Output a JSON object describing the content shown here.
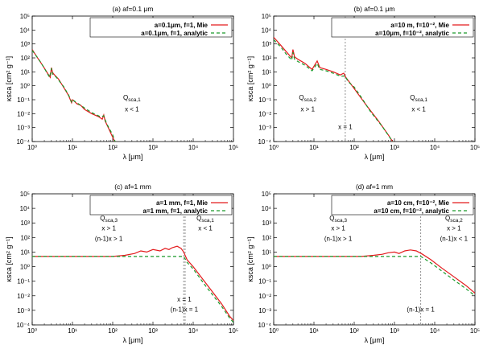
{
  "chart_data": [
    {
      "type": "line",
      "title": "(a) af=0.1 μm",
      "xlabel": "λ [μm]",
      "ylabel": "κsca [cm² g⁻¹]",
      "xscale": "log",
      "yscale": "log",
      "xlim": [
        1,
        100000
      ],
      "ylim": [
        0.0001,
        100000
      ],
      "x_ticks": [
        "10⁰",
        "10¹",
        "10²",
        "10³",
        "10⁴",
        "10⁵"
      ],
      "y_ticks": [
        "10⁻⁴",
        "10⁻³",
        "10⁻²",
        "10⁻¹",
        "10⁰",
        "10¹",
        "10²",
        "10³",
        "10⁴",
        "10⁵"
      ],
      "legend": [
        "a=0.1μm, f=1, Mie",
        "a=0.1μm, f=1, analytic"
      ],
      "series": [
        {
          "name": "a=0.1μm, f=1, Mie",
          "color": "#e31a1c",
          "dash": "",
          "points": [
            [
              1,
              400
            ],
            [
              1.3,
              120
            ],
            [
              1.8,
              30
            ],
            [
              2.4,
              8
            ],
            [
              2.8,
              4
            ],
            [
              3.0,
              20
            ],
            [
              3.2,
              9
            ],
            [
              3.6,
              6
            ],
            [
              4.5,
              3
            ],
            [
              6,
              0.8
            ],
            [
              8,
              0.2
            ],
            [
              9.5,
              0.06
            ],
            [
              10,
              0.1
            ],
            [
              11,
              0.08
            ],
            [
              13,
              0.05
            ],
            [
              16,
              0.04
            ],
            [
              20,
              0.02
            ],
            [
              30,
              0.01
            ],
            [
              45,
              0.006
            ],
            [
              55,
              0.004
            ],
            [
              60,
              0.008
            ],
            [
              65,
              0.003
            ],
            [
              80,
              0.0008
            ],
            [
              100,
              0.0002
            ],
            [
              112,
              0.0001
            ]
          ]
        },
        {
          "name": "a=0.1μm, f=1, analytic",
          "color": "#1a9a2a",
          "dash": "4,3",
          "points": [
            [
              1,
              350
            ],
            [
              1.5,
              70
            ],
            [
              2,
              18
            ],
            [
              2.7,
              4
            ],
            [
              3,
              18
            ],
            [
              3.2,
              7
            ],
            [
              4,
              4
            ],
            [
              6,
              0.9
            ],
            [
              8,
              0.22
            ],
            [
              9.5,
              0.07
            ],
            [
              10,
              0.1
            ],
            [
              12,
              0.07
            ],
            [
              16,
              0.04
            ],
            [
              20,
              0.025
            ],
            [
              30,
              0.012
            ],
            [
              50,
              0.006
            ],
            [
              60,
              0.007
            ],
            [
              70,
              0.002
            ],
            [
              100,
              0.0003
            ],
            [
              115,
              0.0001
            ]
          ]
        }
      ],
      "vlines": [],
      "annotations": [
        [
          "Q_sca,1",
          300,
          0.1
        ],
        [
          "x < 1",
          300,
          0.015
        ]
      ]
    },
    {
      "type": "line",
      "title": "(b) af=0.1 μm",
      "xlabel": "λ [μm]",
      "ylabel": "κsca [cm² g⁻¹]",
      "xscale": "log",
      "yscale": "log",
      "xlim": [
        1,
        100000
      ],
      "ylim": [
        0.0001,
        100000
      ],
      "x_ticks": [
        "10⁰",
        "10¹",
        "10²",
        "10³",
        "10⁴",
        "10⁵"
      ],
      "y_ticks": [
        "10⁻⁴",
        "10⁻³",
        "10⁻²",
        "10⁻¹",
        "10⁰",
        "10¹",
        "10²",
        "10³",
        "10⁴",
        "10⁵"
      ],
      "legend": [
        "a=10 m, f=10⁻², Mie",
        "a=10μm, f=10⁻², analytic"
      ],
      "series": [
        {
          "name": "a=10 m, f=10⁻², Mie",
          "color": "#e31a1c",
          "dash": "",
          "points": [
            [
              1,
              3000
            ],
            [
              1.5,
              800
            ],
            [
              2,
              300
            ],
            [
              2.8,
              100
            ],
            [
              3,
              400
            ],
            [
              3.3,
              120
            ],
            [
              4,
              80
            ],
            [
              6,
              40
            ],
            [
              9,
              15
            ],
            [
              10,
              25
            ],
            [
              12,
              60
            ],
            [
              14,
              20
            ],
            [
              20,
              15
            ],
            [
              30,
              10
            ],
            [
              45,
              6
            ],
            [
              55,
              8
            ],
            [
              62,
              4
            ],
            [
              80,
              1.5
            ],
            [
              120,
              0.3
            ],
            [
              200,
              0.04
            ],
            [
              400,
              0.003
            ],
            [
              700,
              0.0003
            ],
            [
              900,
              0.0001
            ]
          ]
        },
        {
          "name": "a=10μm, f=10⁻², analytic",
          "color": "#1a9a2a",
          "dash": "4,3",
          "points": [
            [
              1,
              2000
            ],
            [
              1.5,
              600
            ],
            [
              2,
              200
            ],
            [
              2.8,
              70
            ],
            [
              3,
              250
            ],
            [
              3.3,
              80
            ],
            [
              4,
              55
            ],
            [
              6,
              30
            ],
            [
              9,
              12
            ],
            [
              10,
              18
            ],
            [
              12,
              40
            ],
            [
              14,
              15
            ],
            [
              20,
              12
            ],
            [
              30,
              8
            ],
            [
              45,
              5
            ],
            [
              60,
              5
            ],
            [
              70,
              2
            ],
            [
              100,
              0.8
            ],
            [
              150,
              0.15
            ],
            [
              250,
              0.015
            ],
            [
              500,
              0.0012
            ],
            [
              900,
              0.0001
            ]
          ]
        }
      ],
      "vlines": [
        [
          60,
          "#777777"
        ]
      ],
      "annotations": [
        [
          "Q_sca,2",
          7,
          0.1
        ],
        [
          "x > 1",
          7,
          0.015
        ],
        [
          "Q_sca,1",
          4000,
          0.1
        ],
        [
          "x < 1",
          4000,
          0.015
        ],
        [
          "x = 1",
          60,
          0.0008
        ]
      ]
    },
    {
      "type": "line",
      "title": "(c) af=1 mm",
      "xlabel": "λ [μm]",
      "ylabel": "κsca [cm² g⁻¹]",
      "xscale": "log",
      "yscale": "log",
      "xlim": [
        1,
        100000
      ],
      "ylim": [
        0.0001,
        100000
      ],
      "x_ticks": [
        "10⁰",
        "10¹",
        "10²",
        "10³",
        "10⁴",
        "10⁵"
      ],
      "y_ticks": [
        "10⁻⁴",
        "10⁻³",
        "10⁻²",
        "10⁻¹",
        "10⁰",
        "10¹",
        "10²",
        "10³",
        "10⁴",
        "10⁵"
      ],
      "legend": [
        "a=1 mm, f=1, Mie",
        "a=1 mm, f=1, analytic"
      ],
      "series": [
        {
          "name": "a=1 mm, f=1, Mie",
          "color": "#e31a1c",
          "dash": "",
          "points": [
            [
              1,
              5
            ],
            [
              100,
              5
            ],
            [
              200,
              6
            ],
            [
              350,
              8
            ],
            [
              500,
              12
            ],
            [
              700,
              10
            ],
            [
              1000,
              15
            ],
            [
              1500,
              12
            ],
            [
              2000,
              18
            ],
            [
              2500,
              15
            ],
            [
              3000,
              20
            ],
            [
              4000,
              25
            ],
            [
              5000,
              18
            ],
            [
              5800,
              10
            ],
            [
              7000,
              3
            ],
            [
              10000,
              1
            ],
            [
              20000,
              0.08
            ],
            [
              50000,
              0.003
            ],
            [
              80000,
              0.0004
            ],
            [
              100000,
              0.0002
            ]
          ]
        },
        {
          "name": "a=1 mm, f=1, analytic",
          "color": "#1a9a2a",
          "dash": "4,3",
          "points": [
            [
              1,
              5
            ],
            [
              5800,
              5
            ],
            [
              7000,
              2
            ],
            [
              10000,
              0.7
            ],
            [
              20000,
              0.05
            ],
            [
              50000,
              0.002
            ],
            [
              80000,
              0.0003
            ],
            [
              100000,
              0.00015
            ]
          ]
        }
      ],
      "vlines": [
        [
          5800,
          "#777777"
        ],
        [
          6300,
          "#777777"
        ]
      ],
      "annotations": [
        [
          "Q_sca,3",
          80,
          1500
        ],
        [
          "x > 1",
          80,
          300
        ],
        [
          "(n-1)x > 1",
          80,
          60
        ],
        [
          "Q_sca,1",
          20000,
          1500
        ],
        [
          "x < 1",
          20000,
          300
        ],
        [
          "x = 1",
          6000,
          0.004
        ],
        [
          "(n-1)x = 1",
          6000,
          0.0008
        ]
      ]
    },
    {
      "type": "line",
      "title": "(d) af=1 mm",
      "xlabel": "λ [μm]",
      "ylabel": "κsca [cm² g⁻¹]",
      "xscale": "log",
      "yscale": "log",
      "xlim": [
        1,
        100000
      ],
      "ylim": [
        0.0001,
        100000
      ],
      "x_ticks": [
        "10⁰",
        "10¹",
        "10²",
        "10³",
        "10⁴",
        "10⁵"
      ],
      "y_ticks": [
        "10⁻⁴",
        "10⁻³",
        "10⁻²",
        "10⁻¹",
        "10⁰",
        "10¹",
        "10²",
        "10³",
        "10⁴",
        "10⁵"
      ],
      "legend": [
        "a=10 cm, f=10⁻², Mie",
        "a=10 cm, f=10⁻², analytic"
      ],
      "series": [
        {
          "name": "a=10 cm, f=10⁻², Mie",
          "color": "#e31a1c",
          "dash": "",
          "points": [
            [
              1,
              5
            ],
            [
              150,
              5
            ],
            [
              300,
              6
            ],
            [
              500,
              7
            ],
            [
              700,
              9
            ],
            [
              1000,
              10
            ],
            [
              1300,
              8
            ],
            [
              1800,
              12
            ],
            [
              2500,
              14
            ],
            [
              3500,
              12
            ],
            [
              5000,
              7
            ],
            [
              8000,
              3
            ],
            [
              15000,
              0.8
            ],
            [
              30000,
              0.2
            ],
            [
              60000,
              0.05
            ],
            [
              100000,
              0.015
            ]
          ]
        },
        {
          "name": "a=10 cm, f=10⁻², analytic",
          "color": "#1a9a2a",
          "dash": "4,3",
          "points": [
            [
              1,
              5
            ],
            [
              4500,
              5
            ],
            [
              8000,
              1.8
            ],
            [
              15000,
              0.5
            ],
            [
              30000,
              0.12
            ],
            [
              60000,
              0.03
            ],
            [
              100000,
              0.01
            ]
          ]
        }
      ],
      "vlines": [
        [
          4500,
          "#777777"
        ]
      ],
      "annotations": [
        [
          "Q_sca,3",
          40,
          1500
        ],
        [
          "x > 1",
          40,
          300
        ],
        [
          "(n-1)x > 1",
          40,
          60
        ],
        [
          "Q_sca,2",
          30000,
          1500
        ],
        [
          "x > 1",
          30000,
          300
        ],
        [
          "(n-1)x < 1",
          30000,
          60
        ],
        [
          "(n-1)x = 1",
          4500,
          0.0008
        ]
      ]
    }
  ]
}
